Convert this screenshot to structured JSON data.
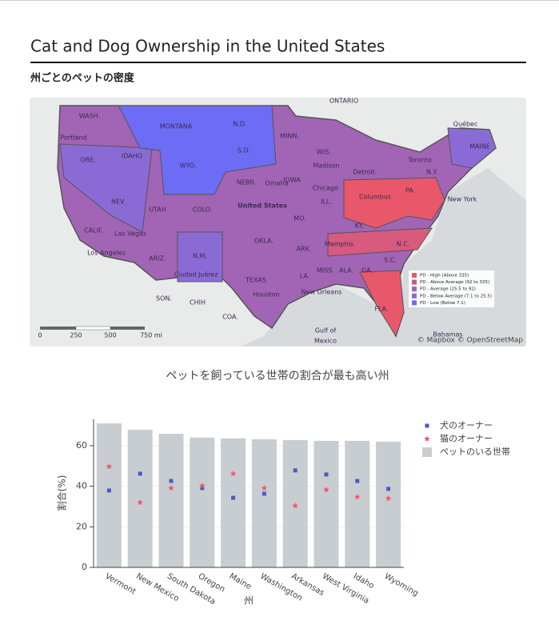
{
  "header": {
    "title": "Cat and Dog Ownership in the United States",
    "subtitle": "州ごとのペットの密度"
  },
  "map": {
    "labels": [
      "ONTARIO",
      "WASH.",
      "Portland",
      "ORE.",
      "IDAHO",
      "MONTANA",
      "WYO.",
      "N.D.",
      "S.D.",
      "NEBR.",
      "Omaha",
      "NEV.",
      "UTAH",
      "COLO.",
      "United States",
      "CALIF.",
      "Las Vegas",
      "Los Angeles",
      "ARIZ.",
      "N.M.",
      "Ciudad Juárez",
      "OKLA.",
      "TEXAS",
      "Houston",
      "MINN.",
      "WIS.",
      "Madison",
      "IOWA",
      "Chicago",
      "ILL.",
      "MO.",
      "ARK.",
      "Memphis",
      "MISS.",
      "ALA.",
      "GA.",
      "LA.",
      "New Orleans",
      "Detroit",
      "Columbus",
      "KY.",
      "PA.",
      "N.Y.",
      "New York",
      "Toronto",
      "Québec",
      "MAINE",
      "N.C.",
      "S.C.",
      "FLA.",
      "SON.",
      "CHIH",
      "COA.",
      "Gulf of",
      "Mexico",
      "Bahamas"
    ],
    "legend": [
      {
        "label": "PD - High (Above 335)",
        "color": "#e8586a"
      },
      {
        "label": "PD - Above Average (92 to 335)",
        "color": "#c25c94"
      },
      {
        "label": "PD - Average (25.5 to 92)",
        "color": "#a264b4"
      },
      {
        "label": "PD - Below Average (7.1 to 25.5)",
        "color": "#8a6bd6"
      },
      {
        "label": "PD - Low (Below 7.1)",
        "color": "#6c6cf6"
      }
    ],
    "scale": [
      "0",
      "250",
      "500",
      "750 mi"
    ],
    "attribution": "© Mapbox © OpenStreetMap"
  },
  "chart_data": {
    "type": "bar",
    "title": "ペットを飼っている世帯の割合が最も高い州",
    "x_label": "州",
    "y_label": "割合(%)",
    "categories": [
      "Vermont",
      "New Mexico",
      "South Dakota",
      "Oregon",
      "Maine",
      "Washington",
      "Arkansas",
      "West Virginia",
      "Idaho",
      "Wyoming"
    ],
    "series": [
      {
        "name": "犬のオーナー",
        "type": "scatter",
        "symbol": "square",
        "color": "#4a5bc4",
        "values": [
          37.9,
          46.2,
          42.6,
          39.1,
          34.3,
          36.3,
          47.8,
          45.8,
          42.6,
          38.7
        ]
      },
      {
        "name": "猫のオーナー",
        "type": "scatter",
        "symbol": "star",
        "color": "#ef5a67",
        "values": [
          49.7,
          32.0,
          39.1,
          40.3,
          46.2,
          39.1,
          30.4,
          38.3,
          34.7,
          34.0
        ]
      },
      {
        "name": "ペットのいる世帯",
        "type": "bar",
        "color": "#c8cdd2",
        "values": [
          71.0,
          67.9,
          65.9,
          64.0,
          63.6,
          63.2,
          62.8,
          62.4,
          62.4,
          62.0
        ]
      }
    ],
    "ylim": [
      0,
      73
    ],
    "yticks": [
      0,
      20,
      40,
      60
    ],
    "grid": true
  }
}
